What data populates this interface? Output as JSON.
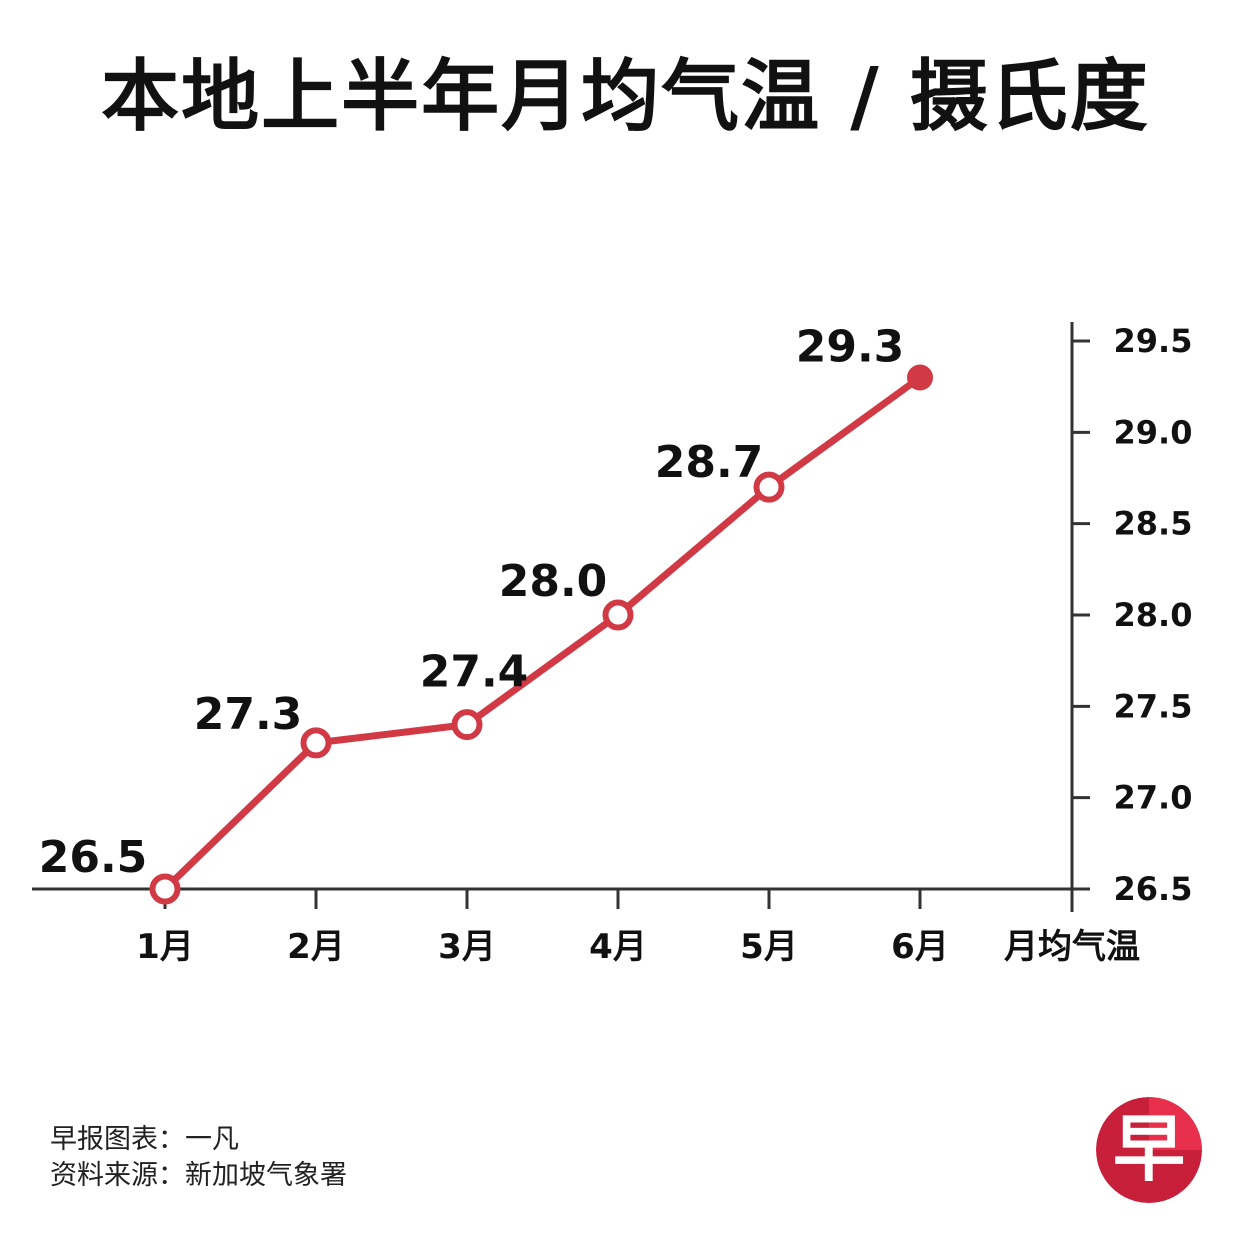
{
  "title": "本地上半年月均气温 / 摄氏度",
  "chart_data": {
    "type": "line",
    "categories": [
      "1月",
      "2月",
      "3月",
      "4月",
      "5月",
      "6月"
    ],
    "series": [
      {
        "values": [
          26.5,
          27.3,
          27.4,
          28.0,
          28.7,
          29.3
        ]
      }
    ],
    "data_labels": [
      "26.5",
      "27.3",
      "27.4",
      "28.0",
      "28.7",
      "29.3"
    ],
    "xlabel": "月均气温",
    "ylabel": "",
    "ylim": [
      26.5,
      29.5
    ],
    "yticks": [
      26.5,
      27.0,
      27.5,
      28.0,
      28.5,
      29.0,
      29.5
    ],
    "ytick_labels": [
      "26.5",
      "27.0",
      "27.5",
      "28.0",
      "28.5",
      "29.0",
      "29.5"
    ],
    "y_axis_side": "right",
    "grid": false,
    "legend": "none",
    "last_point_filled": true,
    "colors": {
      "line": "#d13a45",
      "axis": "#333333",
      "text": "#111111"
    }
  },
  "footer": {
    "credit": "早报图表：一凡",
    "source": "资料来源：新加坡气象署"
  },
  "logo": {
    "glyph": "早",
    "colors": {
      "outer": "#c8203a",
      "inner": "#e8304d"
    }
  }
}
